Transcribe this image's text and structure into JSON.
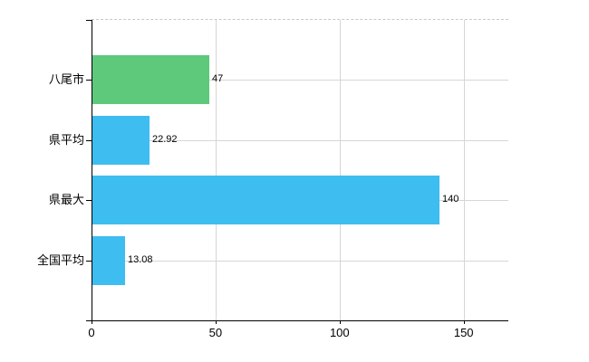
{
  "chart_data": {
    "type": "bar",
    "orientation": "horizontal",
    "title": "",
    "categories": [
      "八尾市",
      "県平均",
      "県最大",
      "全国平均"
    ],
    "values": [
      47,
      22.92,
      140,
      13.08
    ],
    "value_labels": [
      "47",
      "22.92",
      "140",
      "13.08"
    ],
    "series": [
      {
        "name": "",
        "values": [
          47,
          22.92,
          140,
          13.08
        ]
      }
    ],
    "bar_colors": [
      "#5ec97b",
      "#3ebdf1",
      "#3ebdf1",
      "#3ebdf1"
    ],
    "xticks": [
      0,
      50,
      100,
      150
    ],
    "xtick_labels": [
      "0",
      "50",
      "100",
      "150"
    ],
    "xlim": [
      0,
      168
    ],
    "xlabel": "",
    "ylabel": "",
    "grid": true,
    "legend": false,
    "gridline_color": "#d6d6d6",
    "top_boundary_color": "#c8c8c8",
    "axis_color": "#000000",
    "text_color": "#000000",
    "background_color": "#ffffff"
  }
}
